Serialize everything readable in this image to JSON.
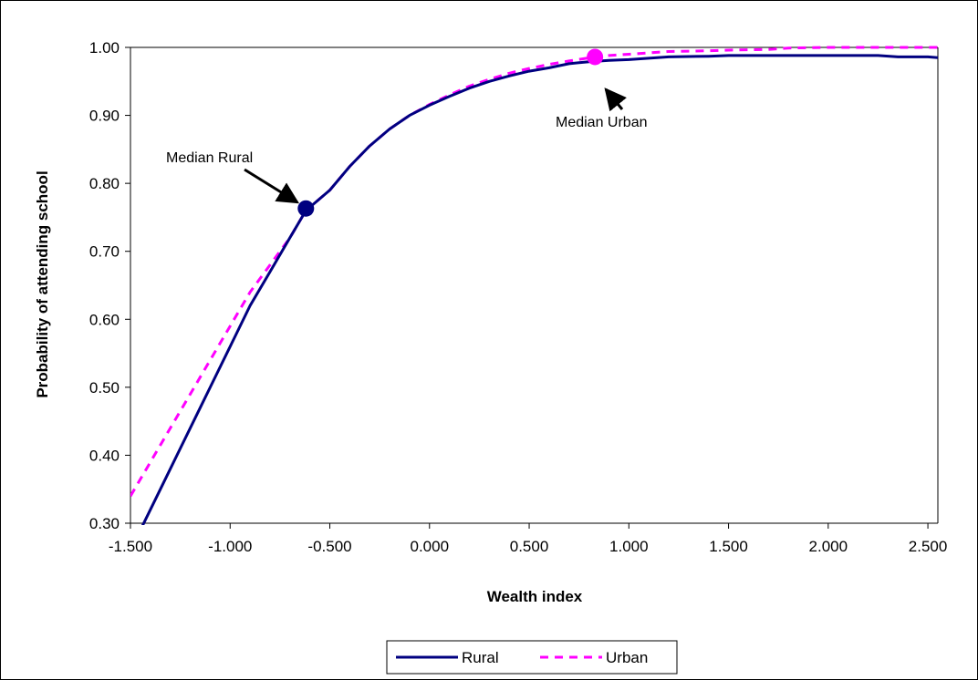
{
  "chart_data": {
    "type": "line",
    "title": "",
    "xlabel": "Wealth index",
    "ylabel": "Probability of attending school",
    "xlim": [
      -1.5,
      2.55
    ],
    "ylim": [
      0.3,
      1.0
    ],
    "x_ticks": [
      "-1.500",
      "-1.000",
      "-0.500",
      "0.000",
      "0.500",
      "1.000",
      "1.500",
      "2.000",
      "2.500"
    ],
    "y_ticks": [
      "0.30",
      "0.40",
      "0.50",
      "0.60",
      "0.70",
      "0.80",
      "0.90",
      "1.00"
    ],
    "grid": "horizontal-top-only",
    "legend_position": "bottom",
    "series": [
      {
        "name": "Rural",
        "color": "#000080",
        "style": "solid",
        "points": [
          [
            -1.45,
            0.29
          ],
          [
            -1.35,
            0.35
          ],
          [
            -1.25,
            0.41
          ],
          [
            -1.15,
            0.47
          ],
          [
            -1.1,
            0.5
          ],
          [
            -1.0,
            0.56
          ],
          [
            -0.9,
            0.62
          ],
          [
            -0.8,
            0.67
          ],
          [
            -0.7,
            0.72
          ],
          [
            -0.62,
            0.76
          ],
          [
            -0.5,
            0.79
          ],
          [
            -0.4,
            0.825
          ],
          [
            -0.3,
            0.855
          ],
          [
            -0.2,
            0.88
          ],
          [
            -0.1,
            0.9
          ],
          [
            0.0,
            0.915
          ],
          [
            0.1,
            0.928
          ],
          [
            0.2,
            0.94
          ],
          [
            0.3,
            0.95
          ],
          [
            0.4,
            0.958
          ],
          [
            0.5,
            0.965
          ],
          [
            0.6,
            0.97
          ],
          [
            0.7,
            0.976
          ],
          [
            0.8,
            0.979
          ],
          [
            0.9,
            0.981
          ],
          [
            1.0,
            0.982
          ],
          [
            1.1,
            0.984
          ],
          [
            1.2,
            0.986
          ],
          [
            1.4,
            0.987
          ],
          [
            1.5,
            0.988
          ],
          [
            1.8,
            0.988
          ],
          [
            2.0,
            0.988
          ],
          [
            2.25,
            0.988
          ],
          [
            2.35,
            0.986
          ],
          [
            2.5,
            0.986
          ],
          [
            2.55,
            0.985
          ]
        ]
      },
      {
        "name": "Urban",
        "color": "#ff00ff",
        "style": "dashed",
        "points": [
          [
            -1.5,
            0.34
          ],
          [
            -1.4,
            0.39
          ],
          [
            -1.3,
            0.44
          ],
          [
            -1.2,
            0.49
          ],
          [
            -1.1,
            0.54
          ],
          [
            -1.0,
            0.59
          ],
          [
            -0.9,
            0.64
          ],
          [
            -0.8,
            0.68
          ],
          [
            -0.7,
            0.72
          ],
          [
            -0.62,
            0.76
          ],
          [
            -0.5,
            0.79
          ],
          [
            -0.4,
            0.825
          ],
          [
            -0.3,
            0.855
          ],
          [
            -0.2,
            0.88
          ],
          [
            -0.1,
            0.9
          ],
          [
            0.0,
            0.916
          ],
          [
            0.1,
            0.93
          ],
          [
            0.2,
            0.943
          ],
          [
            0.3,
            0.953
          ],
          [
            0.4,
            0.962
          ],
          [
            0.5,
            0.969
          ],
          [
            0.6,
            0.975
          ],
          [
            0.7,
            0.98
          ],
          [
            0.83,
            0.986
          ],
          [
            0.9,
            0.988
          ],
          [
            1.0,
            0.99
          ],
          [
            1.1,
            0.992
          ],
          [
            1.2,
            0.994
          ],
          [
            1.4,
            0.995
          ],
          [
            1.5,
            0.996
          ],
          [
            1.7,
            0.997
          ],
          [
            1.8,
            0.999
          ],
          [
            2.0,
            1.0
          ],
          [
            2.55,
            1.0
          ]
        ]
      }
    ],
    "markers": [
      {
        "label": "Median Rural",
        "x": -0.62,
        "y": 0.763,
        "color": "#000080"
      },
      {
        "label": "Median Urban",
        "x": 0.83,
        "y": 0.986,
        "color": "#ff00ff"
      }
    ]
  }
}
